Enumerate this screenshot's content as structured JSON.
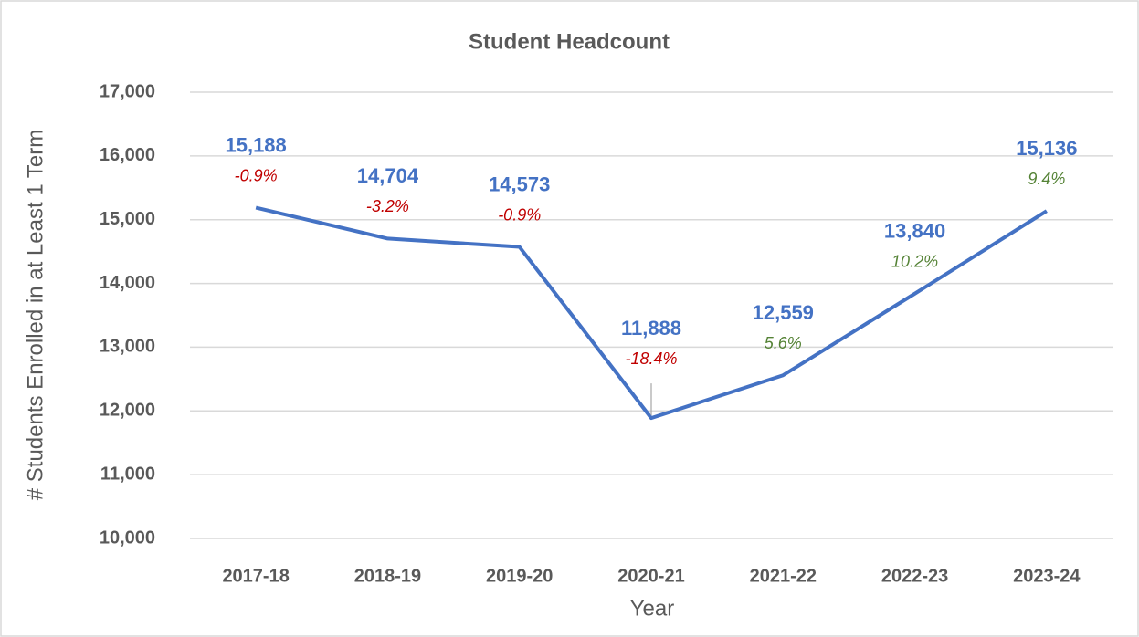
{
  "chart_data": {
    "type": "line",
    "title": "Student Headcount",
    "x_label": "Year",
    "y_label": "# Students Enrolled in at Least 1 Term",
    "categories": [
      "2017-18",
      "2018-19",
      "2019-20",
      "2020-21",
      "2021-22",
      "2022-23",
      "2023-24"
    ],
    "series": [
      {
        "name": "Student Headcount",
        "color": "#4472c4",
        "values": [
          15188,
          14704,
          14573,
          11888,
          12559,
          13840,
          15136
        ],
        "value_labels": [
          "15,188",
          "14,704",
          "14,573",
          "11,888",
          "12,559",
          "13,840",
          "15,136"
        ]
      }
    ],
    "annotations": [
      {
        "text": "-0.9%",
        "color": "#c00000"
      },
      {
        "text": "-3.2%",
        "color": "#c00000"
      },
      {
        "text": "-0.9%",
        "color": "#c00000"
      },
      {
        "text": "-18.4%",
        "color": "#c00000"
      },
      {
        "text": "5.6%",
        "color": "#548235"
      },
      {
        "text": "10.2%",
        "color": "#548235"
      },
      {
        "text": "9.4%",
        "color": "#548235"
      }
    ],
    "ylim": [
      10000,
      17000
    ],
    "yticks": [
      {
        "value": 10000,
        "label": "10,000"
      },
      {
        "value": 11000,
        "label": "11,000"
      },
      {
        "value": 12000,
        "label": "12,000"
      },
      {
        "value": 13000,
        "label": "13,000"
      },
      {
        "value": 14000,
        "label": "14,000"
      },
      {
        "value": 15000,
        "label": "15,000"
      },
      {
        "value": 16000,
        "label": "16,000"
      },
      {
        "value": 17000,
        "label": "17,000"
      }
    ],
    "grid": true
  }
}
